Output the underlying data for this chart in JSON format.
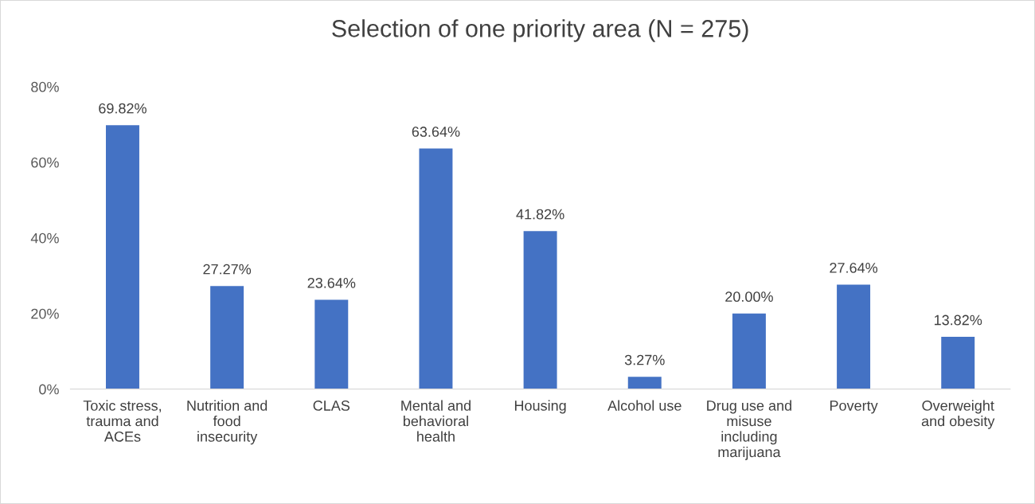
{
  "chart_data": {
    "type": "bar",
    "title": "Selection of one priority area (N = 275)",
    "categories": [
      "Toxic stress,\ntrauma and\nACEs",
      "Nutrition and\nfood\ninsecurity",
      "CLAS",
      "Mental and\nbehavioral\nhealth",
      "Housing",
      "Alcohol use",
      "Drug use and\nmisuse\nincluding\nmarijuana",
      "Poverty",
      "Overweight\nand obesity"
    ],
    "values": [
      69.82,
      27.27,
      23.64,
      63.64,
      41.82,
      3.27,
      20.0,
      27.64,
      13.82
    ],
    "value_labels": [
      "69.82%",
      "27.27%",
      "23.64%",
      "63.64%",
      "41.82%",
      "3.27%",
      "20.00%",
      "27.64%",
      "13.82%"
    ],
    "color": "#4472c4",
    "ylim": [
      0,
      80
    ],
    "yticks": [
      {
        "value": 0,
        "label": "0%"
      },
      {
        "value": 20,
        "label": "20%"
      },
      {
        "value": 40,
        "label": "40%"
      },
      {
        "value": 60,
        "label": "60%"
      },
      {
        "value": 80,
        "label": "80%"
      }
    ],
    "grid": false
  }
}
